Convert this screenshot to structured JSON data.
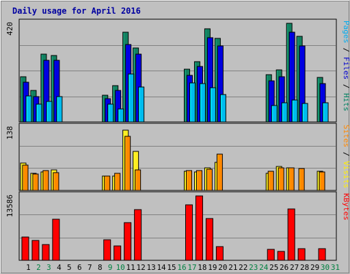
{
  "chart_data": {
    "type": "bar",
    "title": "Daily usage for April 2016",
    "days": [
      "1",
      "2",
      "3",
      "4",
      "5",
      "6",
      "7",
      "8",
      "9",
      "10",
      "11",
      "12",
      "13",
      "14",
      "15",
      "16",
      "17",
      "18",
      "19",
      "20",
      "21",
      "22",
      "23",
      "24",
      "25",
      "26",
      "27",
      "28",
      "29",
      "30",
      "31"
    ],
    "weekend_days": [
      "2",
      "3",
      "9",
      "10",
      "16",
      "17",
      "23",
      "24",
      "30",
      "31"
    ],
    "weekday_color": "#000000",
    "weekend_color": "#008040",
    "panels": {
      "top": {
        "max_label": "420",
        "max": 420,
        "right_label": [
          {
            "text": "Pages",
            "color": "#00aaee"
          },
          {
            "text": " / ",
            "color": "#000000"
          },
          {
            "text": "Files",
            "color": "#0000cc"
          },
          {
            "text": " / ",
            "color": "#000000"
          },
          {
            "text": "Hits",
            "color": "#008060"
          }
        ],
        "series": [
          {
            "key": "hits",
            "color": "#138060",
            "values": [
              192,
              133,
              289,
              284,
              0,
              0,
              0,
              0,
              115,
              154,
              382,
              315,
              0,
              0,
              0,
              0,
              224,
              257,
              396,
              357,
              0,
              0,
              0,
              0,
              201,
              222,
              419,
              364,
              0,
              190,
              0
            ]
          },
          {
            "key": "files",
            "color": "#0000e0",
            "values": [
              170,
              109,
              263,
              262,
              0,
              0,
              0,
              0,
              98,
              135,
              330,
              290,
              0,
              0,
              0,
              0,
              198,
              235,
              360,
              325,
              0,
              0,
              0,
              0,
              176,
              192,
              382,
              325,
              0,
              163,
              0
            ]
          },
          {
            "key": "pages",
            "color": "#00bbee",
            "values": [
              112,
              75,
              87,
              107,
              0,
              0,
              0,
              0,
              75,
              55,
              205,
              150,
              0,
              0,
              0,
              0,
              165,
              162,
              145,
              118,
              0,
              0,
              0,
              0,
              70,
              82,
              92,
              80,
              0,
              82,
              0
            ]
          }
        ]
      },
      "middle": {
        "max_label": "138",
        "max": 138,
        "right_label": [
          {
            "text": "Sites",
            "color": "#ff8800"
          },
          {
            "text": " / ",
            "color": "#000000"
          },
          {
            "text": "Visits",
            "color": "#ffee00"
          }
        ],
        "series": [
          {
            "key": "visits",
            "color": "#ffee22",
            "values": [
              60,
              37,
              40,
              45,
              0,
              0,
              0,
              0,
              32,
              32,
              132,
              85,
              0,
              0,
              0,
              0,
              42,
              40,
              50,
              62,
              0,
              0,
              0,
              0,
              37,
              53,
              49,
              0,
              0,
              42,
              0
            ]
          },
          {
            "key": "sites",
            "color": "#ff8800",
            "values": [
              55,
              36,
              44,
              39,
              0,
              0,
              0,
              0,
              31,
              37,
              118,
              45,
              0,
              0,
              0,
              0,
              44,
              43,
              47,
              80,
              0,
              0,
              0,
              0,
              42,
              49,
              50,
              48,
              0,
              41,
              0
            ]
          }
        ]
      },
      "bottom": {
        "max_label": "13586",
        "max": 13586,
        "right_label": [
          {
            "text": "KBytes",
            "color": "#ff0000"
          }
        ],
        "series": [
          {
            "key": "kbytes",
            "color": "#ff0000",
            "values": [
              4900,
              4200,
              3300,
              8600,
              0,
              0,
              0,
              0,
              4300,
              3000,
              7900,
              10700,
              0,
              0,
              0,
              0,
              11700,
              13586,
              8800,
              2900,
              0,
              0,
              0,
              0,
              2300,
              1900,
              10900,
              2400,
              0,
              2500,
              0
            ]
          }
        ]
      }
    }
  }
}
